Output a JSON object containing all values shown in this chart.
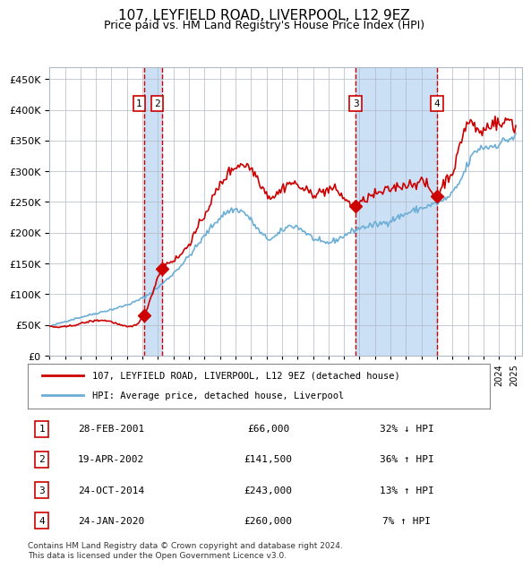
{
  "title": "107, LEYFIELD ROAD, LIVERPOOL, L12 9EZ",
  "subtitle": "Price paid vs. HM Land Registry's House Price Index (HPI)",
  "footer": "Contains HM Land Registry data © Crown copyright and database right 2024.\nThis data is licensed under the Open Government Licence v3.0.",
  "legend_line1": "107, LEYFIELD ROAD, LIVERPOOL, L12 9EZ (detached house)",
  "legend_line2": "HPI: Average price, detached house, Liverpool",
  "transactions": [
    {
      "num": 1,
      "date": "2001-02-28",
      "price": 66000,
      "pct": "32% ↓ HPI",
      "label": "28-FEB-2001",
      "price_str": "£66,000"
    },
    {
      "num": 2,
      "date": "2002-04-19",
      "price": 141500,
      "pct": "36% ↑ HPI",
      "label": "19-APR-2002",
      "price_str": "£141,500"
    },
    {
      "num": 3,
      "date": "2014-10-24",
      "price": 243000,
      "pct": "13% ↑ HPI",
      "label": "24-OCT-2014",
      "price_str": "£243,000"
    },
    {
      "num": 4,
      "date": "2020-01-24",
      "price": 260000,
      "pct": "7% ↑ HPI",
      "label": "24-JAN-2020",
      "price_str": "£260,000"
    }
  ],
  "hpi_color": "#6baed6",
  "price_color": "#cc0000",
  "marker_color": "#cc0000",
  "vline_color": "#cc0000",
  "shade_color": "#cce0f5",
  "grid_color": "#b0b8c8",
  "bg_color": "#ffffff",
  "ylim": [
    0,
    470000
  ],
  "yticks": [
    0,
    50000,
    100000,
    150000,
    200000,
    250000,
    300000,
    350000,
    400000,
    450000
  ],
  "xstart_year": 1995,
  "xend_year": 2025
}
